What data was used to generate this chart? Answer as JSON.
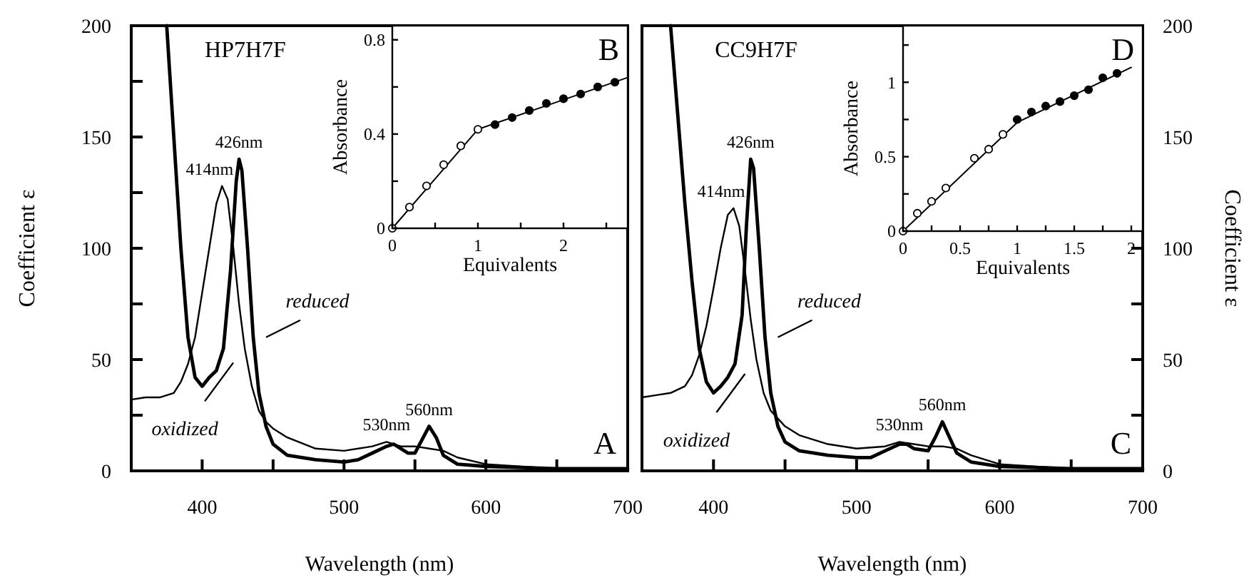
{
  "chart_data": [
    {
      "type": "line",
      "title": "HP7H7F",
      "xlabel": "Wavelength (nm)",
      "ylabel": "Coefficient ε",
      "xlim": [
        350,
        700
      ],
      "xticks": [
        400,
        {
          "value": 450,
          "label": null
        },
        500,
        {
          "value": 550,
          "label": null
        },
        600,
        {
          "value": 650,
          "label": null
        },
        700
      ],
      "ylim": [
        0,
        200
      ],
      "yticks": [
        0,
        {
          "value": 25,
          "label": null
        },
        50,
        {
          "value": 75,
          "label": null
        },
        100,
        {
          "value": 125,
          "label": null
        },
        150,
        {
          "value": 175,
          "label": null
        },
        200
      ],
      "series": [
        {
          "name": "reduced",
          "color": "#000000",
          "x": [
            375,
            380,
            385,
            390,
            395,
            400,
            405,
            410,
            415,
            420,
            424,
            426,
            428,
            432,
            436,
            440,
            445,
            450,
            460,
            480,
            500,
            510,
            520,
            530,
            535,
            540,
            545,
            550,
            555,
            560,
            565,
            570,
            580,
            600,
            650,
            700
          ],
          "values": [
            200,
            150,
            100,
            60,
            42,
            38,
            42,
            45,
            55,
            90,
            130,
            140,
            135,
            100,
            60,
            35,
            20,
            12,
            7,
            5,
            4,
            5,
            8,
            11,
            12,
            10,
            8,
            8,
            14,
            20,
            15,
            7,
            3,
            2,
            1,
            1
          ]
        },
        {
          "name": "oxidized",
          "color": "#000000",
          "x": [
            350,
            360,
            370,
            380,
            385,
            390,
            395,
            400,
            405,
            410,
            414,
            418,
            422,
            426,
            430,
            435,
            440,
            445,
            450,
            460,
            480,
            500,
            520,
            530,
            540,
            550,
            560,
            570,
            580,
            600,
            650,
            700
          ],
          "values": [
            32,
            33,
            33,
            35,
            40,
            48,
            60,
            80,
            100,
            120,
            128,
            122,
            100,
            75,
            55,
            38,
            27,
            22,
            19,
            15,
            10,
            9,
            11,
            13,
            11,
            11,
            10,
            9,
            6,
            3,
            1,
            1
          ]
        }
      ],
      "annotations": [
        "A",
        {
          "text": "414nm",
          "x": 414,
          "y": 128
        },
        {
          "text": "426nm",
          "x": 426,
          "y": 140
        },
        {
          "text": "530nm",
          "x": 530,
          "y": 13
        },
        {
          "text": "560nm",
          "x": 560,
          "y": 20
        }
      ]
    },
    {
      "type": "scatter",
      "xlabel": "Equivalents",
      "ylabel": "Absorbance",
      "xlim": [
        0,
        2.75
      ],
      "xticks": [
        0,
        {
          "value": 0.5,
          "label": null
        },
        1,
        {
          "value": 1.5,
          "label": null
        },
        2,
        {
          "value": 2.5,
          "label": null
        }
      ],
      "ylim": [
        0,
        0.86
      ],
      "yticks": [
        0,
        {
          "value": 0.2,
          "label": null
        },
        0.4,
        {
          "value": 0.6,
          "label": null
        },
        0.8
      ],
      "series": [
        {
          "type": "line",
          "color": "#000000",
          "x": [
            0,
            1,
            2.75
          ],
          "values": [
            0,
            0.42,
            0.64
          ]
        },
        {
          "marker": "circle",
          "color": "#ffffff",
          "x": [
            0,
            0.2,
            0.4,
            0.6,
            0.8,
            1
          ],
          "values": [
            0,
            0.09,
            0.18,
            0.27,
            0.35,
            0.42
          ]
        },
        {
          "marker": "circle",
          "color": "#000000",
          "x": [
            1.2,
            1.4,
            1.6,
            1.8,
            2,
            2.2,
            2.4,
            2.6
          ],
          "values": [
            0.44,
            0.47,
            0.5,
            0.53,
            0.55,
            0.57,
            0.6,
            0.62
          ]
        }
      ],
      "annotations": [
        "B"
      ]
    },
    {
      "type": "line",
      "title": "CC9H7F",
      "xlabel": "Wavelength (nm)",
      "ylabel": "Coefficient ε",
      "xlim": [
        350,
        700
      ],
      "xticks": [
        400,
        {
          "value": 450,
          "label": null
        },
        500,
        {
          "value": 550,
          "label": null
        },
        600,
        {
          "value": 650,
          "label": null
        },
        700
      ],
      "ylim": [
        0,
        200
      ],
      "yticks": [
        0,
        {
          "value": 25,
          "label": null
        },
        50,
        {
          "value": 75,
          "label": null
        },
        100,
        {
          "value": 125,
          "label": null
        },
        150,
        {
          "value": 175,
          "label": null
        },
        200
      ],
      "series": [
        {
          "name": "reduced",
          "color": "#000000",
          "x": [
            370,
            375,
            380,
            385,
            390,
            395,
            400,
            405,
            410,
            415,
            420,
            423,
            426,
            428,
            432,
            436,
            440,
            445,
            450,
            460,
            480,
            500,
            510,
            520,
            530,
            535,
            540,
            550,
            555,
            560,
            565,
            570,
            580,
            600,
            650,
            700
          ],
          "values": [
            200,
            160,
            120,
            85,
            55,
            40,
            35,
            38,
            42,
            48,
            70,
            110,
            140,
            136,
            100,
            60,
            35,
            20,
            13,
            9,
            7,
            6,
            6,
            9,
            12,
            12,
            10,
            9,
            15,
            22,
            15,
            8,
            4,
            2,
            1,
            1
          ]
        },
        {
          "name": "oxidized",
          "color": "#000000",
          "x": [
            350,
            360,
            370,
            380,
            385,
            390,
            395,
            400,
            405,
            410,
            414,
            418,
            422,
            426,
            430,
            435,
            440,
            450,
            460,
            480,
            500,
            520,
            530,
            540,
            550,
            560,
            570,
            580,
            600,
            650,
            700
          ],
          "values": [
            33,
            34,
            35,
            38,
            43,
            52,
            65,
            82,
            100,
            115,
            118,
            110,
            90,
            68,
            50,
            35,
            27,
            20,
            16,
            12,
            10,
            11,
            13,
            12,
            11,
            11,
            10,
            7,
            3,
            1,
            1
          ]
        }
      ],
      "annotations": [
        "C",
        {
          "text": "414nm",
          "x": 414,
          "y": 118
        },
        {
          "text": "426nm",
          "x": 426,
          "y": 140
        },
        {
          "text": "530nm",
          "x": 530,
          "y": 13
        },
        {
          "text": "560nm",
          "x": 560,
          "y": 22
        }
      ]
    },
    {
      "type": "scatter",
      "xlabel": "Equivalents",
      "ylabel": "Absorbance",
      "xlim": [
        0,
        2.1
      ],
      "xticks": [
        0,
        {
          "value": 0.25,
          "label": null
        },
        0.5,
        {
          "value": 0.75,
          "label": null
        },
        1,
        {
          "value": 1.25,
          "label": null
        },
        1.5,
        {
          "value": 1.75,
          "label": null
        },
        2
      ],
      "ylim": [
        0,
        1.38
      ],
      "yticks": [
        0,
        {
          "value": 0.25,
          "label": null
        },
        0.5,
        {
          "value": 0.75,
          "label": null
        },
        1,
        {
          "value": 1.25,
          "label": null
        }
      ],
      "series": [
        {
          "type": "line",
          "color": "#000000",
          "x": [
            0,
            1,
            2
          ],
          "values": [
            0,
            0.73,
            1.1
          ]
        },
        {
          "marker": "circle",
          "color": "#ffffff",
          "x": [
            0,
            0.125,
            0.25,
            0.375,
            0.625,
            0.75,
            0.875
          ],
          "values": [
            0,
            0.12,
            0.2,
            0.29,
            0.49,
            0.55,
            0.65
          ]
        },
        {
          "marker": "circle",
          "color": "#000000",
          "x": [
            1,
            1.125,
            1.25,
            1.375,
            1.5,
            1.625,
            1.75,
            1.875
          ],
          "values": [
            0.75,
            0.8,
            0.84,
            0.87,
            0.91,
            0.95,
            1.03,
            1.06
          ]
        }
      ],
      "annotations": [
        "D"
      ]
    }
  ]
}
